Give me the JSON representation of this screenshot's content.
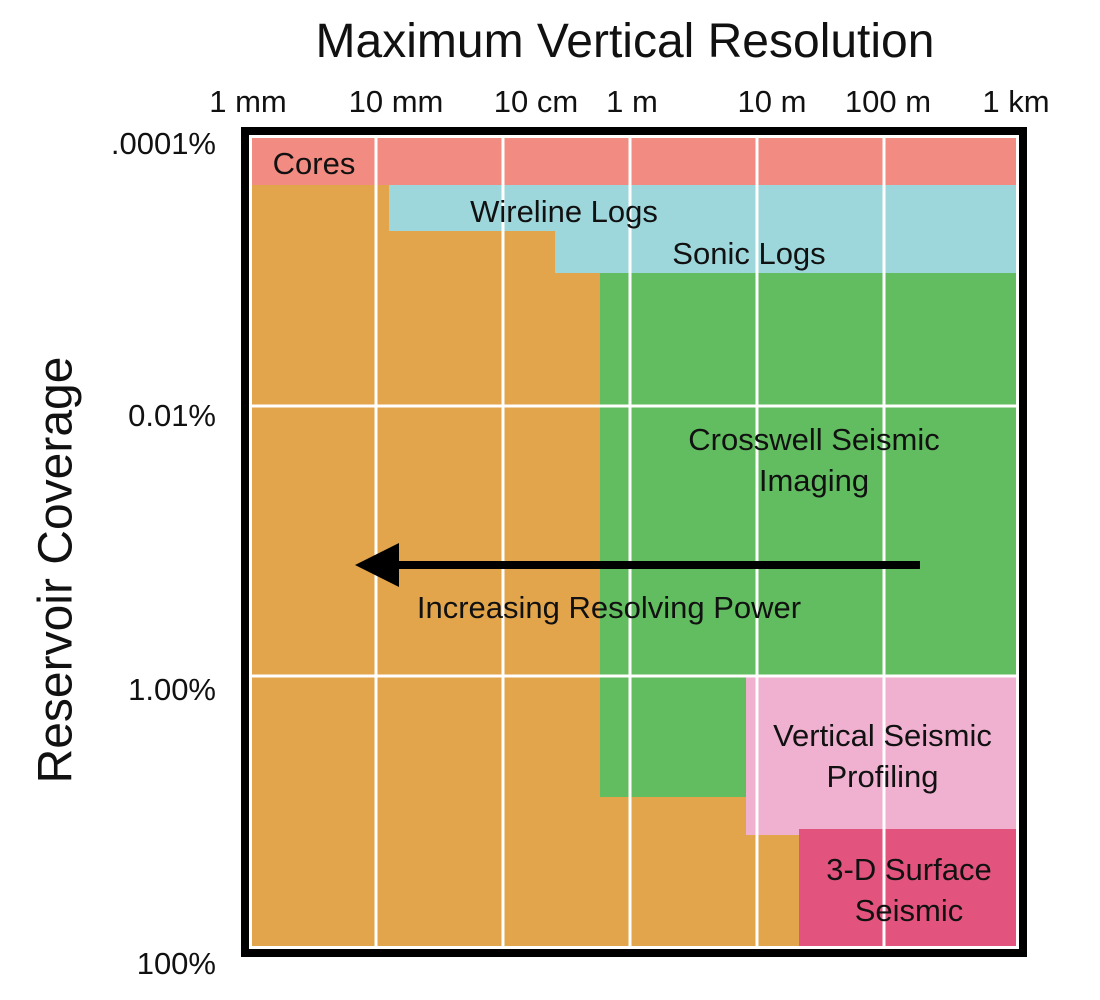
{
  "title": "Maximum Vertical Resolution",
  "y_axis_label": "Reservoir Coverage",
  "x_ticks": [
    "1 mm",
    "10 mm",
    "10 cm",
    "1 m",
    "10 m",
    "100 m",
    "1 km"
  ],
  "y_ticks": [
    ".0001%",
    "0.01%",
    "1.00%",
    "100%"
  ],
  "regions": [
    {
      "name": "Cores",
      "lines": [
        "Cores"
      ],
      "color": "#f28b82"
    },
    {
      "name": "Wireline Logs",
      "lines": [
        "Wireline Logs"
      ],
      "color": "#9dd7dc"
    },
    {
      "name": "Sonic Logs",
      "lines": [
        "Sonic Logs"
      ],
      "color": "#9dd7dc"
    },
    {
      "name": "Crosswell Seismic Imaging",
      "lines": [
        "Crosswell Seismic",
        "Imaging"
      ],
      "color": "#61bd5f"
    },
    {
      "name": "Vertical Seismic Profiling",
      "lines": [
        "Vertical Seismic",
        "Profiling"
      ],
      "color": "#f0b1d1"
    },
    {
      "name": "3-D Surface Seismic",
      "lines": [
        "3-D Surface",
        "Seismic"
      ],
      "color": "#e2547e"
    }
  ],
  "arrow": {
    "label": "Increasing Resolving Power",
    "direction": "left"
  },
  "colors": {
    "background_fill": "#e3a54c",
    "gridline": "#ffffff",
    "frame": "#000000",
    "arrow": "#000000"
  }
}
